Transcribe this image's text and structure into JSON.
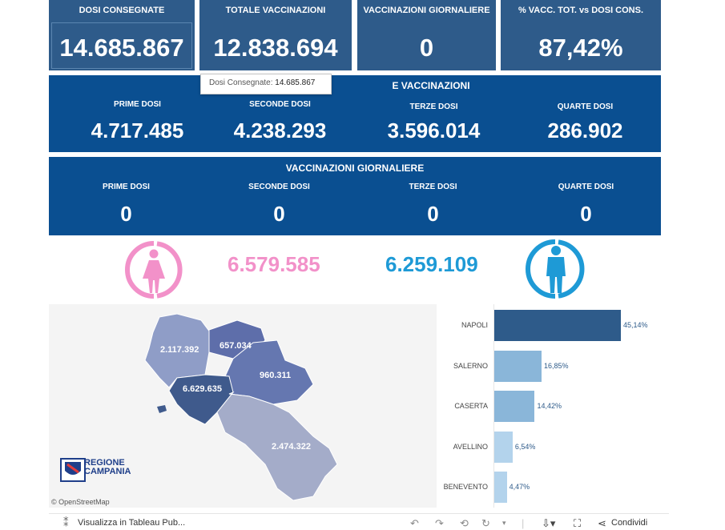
{
  "kpis": {
    "dosi_consegnate": {
      "label": "DOSI  CONSEGNATE",
      "value": "14.685.867"
    },
    "totale_vaccinazioni": {
      "label": "TOTALE VACCINAZIONI",
      "value": "12.838.694"
    },
    "vacc_giornaliere": {
      "label": "VACCINAZIONI GIORNALIERE",
      "value": "0"
    },
    "perc_vacc": {
      "label": "% VACC. TOT. vs DOSI CONS.",
      "value": "87,42%"
    }
  },
  "tooltip": {
    "label": "Dosi Consegnate:",
    "value": "14.685.867"
  },
  "totale_band": {
    "title": "E VACCINAZIONI",
    "columns": [
      {
        "label": "PRIME DOSI",
        "value": "4.717.485"
      },
      {
        "label": "SECONDE DOSI",
        "value": "4.238.293"
      },
      {
        "label": "TERZE DOSI",
        "value": "3.596.014"
      },
      {
        "label": "QUARTE DOSI",
        "value": "286.902"
      }
    ]
  },
  "giornaliere_band": {
    "title": "VACCINAZIONI GIORNALIERE",
    "columns": [
      {
        "label": "PRIME DOSI",
        "value": "0"
      },
      {
        "label": "SECONDE DOSI",
        "value": "0"
      },
      {
        "label": "TERZE DOSI",
        "value": "0"
      },
      {
        "label": "QUARTE DOSI",
        "value": "0"
      }
    ]
  },
  "gender": {
    "female": {
      "value": "6.579.585",
      "color": "#f291c9",
      "icon": "female-icon"
    },
    "male": {
      "value": "6.259.109",
      "color": "#1e9ad6",
      "icon": "male-icon"
    }
  },
  "map": {
    "provinces": [
      {
        "name": "Caserta",
        "value": "2.117.392"
      },
      {
        "name": "Benevento",
        "value": "657.034"
      },
      {
        "name": "Avellino",
        "value": "960.311"
      },
      {
        "name": "Napoli",
        "value": "6.629.635"
      },
      {
        "name": "Salerno",
        "value": "2.474.322"
      }
    ],
    "logo_text": [
      "REGIONE",
      "CAMPANIA"
    ],
    "attribution": "© OpenStreetMap"
  },
  "chart_data": {
    "type": "bar",
    "orientation": "horizontal",
    "categories": [
      "NAPOLI",
      "SALERNO",
      "CASERTA",
      "AVELLINO",
      "BENEVENTO"
    ],
    "values": [
      45.14,
      16.85,
      14.42,
      6.54,
      4.47
    ],
    "labels": [
      "45,14%",
      "16,85%",
      "14,42%",
      "6,54%",
      "4,47%"
    ],
    "colors": [
      "#2e5b8a",
      "#8ab6d9",
      "#8ab6d9",
      "#b3d3ec",
      "#b3d3ec"
    ],
    "label_color": "#2e5b8a",
    "xlim": [
      0,
      50
    ]
  },
  "footer": {
    "tableau_link": "Visualizza in Tableau Pub...",
    "share_label": "Condividi"
  }
}
